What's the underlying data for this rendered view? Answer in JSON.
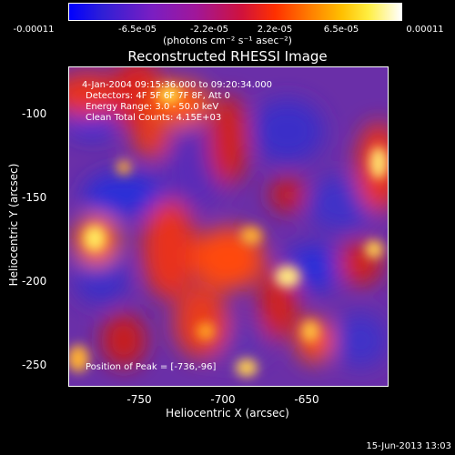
{
  "colorbar": {
    "ticks": [
      "-0.00011",
      "-6.5e-05",
      "-2.2e-05",
      "2.2e-05",
      "6.5e-05",
      "0.00011"
    ],
    "unit": "(photons cm⁻² s⁻¹ asec⁻²)"
  },
  "chart_data": {
    "type": "heatmap",
    "title": "Reconstructed RHESSI Image",
    "xlabel": "Heliocentric X (arcsec)",
    "ylabel": "Heliocentric Y (arcsec)",
    "xlim": [
      -795,
      -605
    ],
    "ylim": [
      -265,
      -75
    ],
    "x_ticks": [
      "-750",
      "-700",
      "-650"
    ],
    "y_ticks": [
      "-100",
      "-150",
      "-200",
      "-250"
    ],
    "colorbar_range": [
      -0.00011,
      0.00011
    ],
    "annotations": {
      "time": "4-Jan-2004 09:15:36.000 to 09:20:34.000",
      "detectors": "Detectors: 4F 5F 6F 7F 8F, Att 0",
      "energy": "Energy Range: 3.0 - 50.0 keV",
      "clean": "Clean    Total Counts: 4.15E+03",
      "peak": "Position of Peak = [-736,-96]"
    }
  },
  "footer": "15-Jun-2013 13:03"
}
